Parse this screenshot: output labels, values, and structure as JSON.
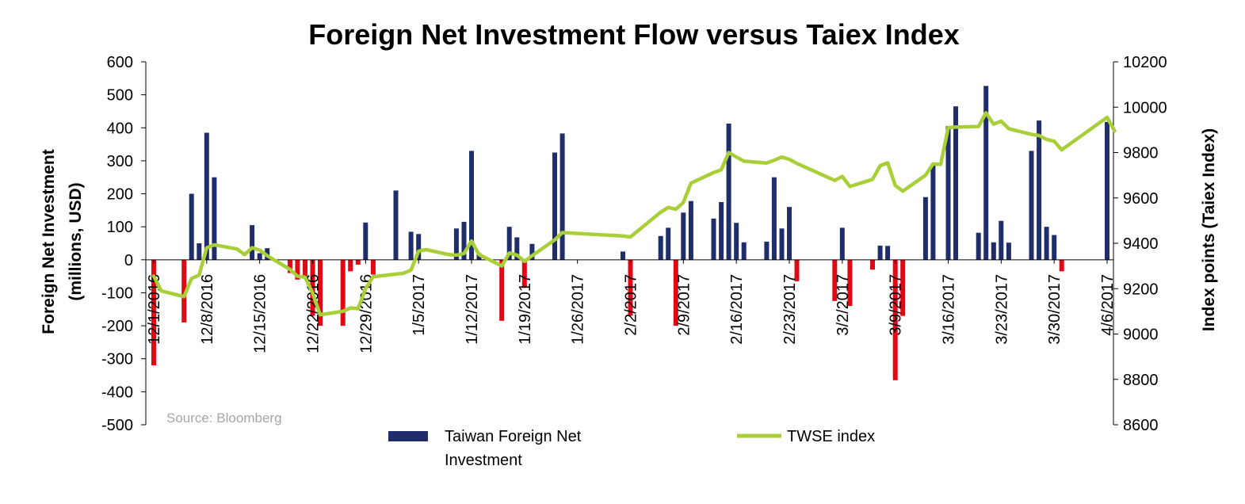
{
  "chart_data": {
    "type": "bar",
    "title": "Foreign Net Investment Flow versus Taiex Index",
    "y_left_label_lines": [
      "Foreign Net Investment",
      "(millions, USD)"
    ],
    "y_right_label": "Index points (Taiex Index)",
    "y_left_ticks": [
      "600",
      "500",
      "400",
      "300",
      "200",
      "100",
      "0",
      "-100",
      "-200",
      "-300",
      "-400",
      "-500"
    ],
    "y_right_ticks": [
      "10200",
      "10000",
      "9800",
      "9600",
      "9400",
      "9200",
      "9000",
      "8800",
      "8600"
    ],
    "ylim_left": [
      -500,
      600
    ],
    "ylim_right": [
      8600,
      10200
    ],
    "x_tick_labels": [
      "12/1/2016",
      "12/8/2016",
      "12/15/2016",
      "12/22/2016",
      "12/29/2016",
      "1/5/2017",
      "1/12/2017",
      "1/19/2017",
      "1/26/2017",
      "2/2/2017",
      "2/9/2017",
      "2/16/2017",
      "2/23/2017",
      "3/2/2017",
      "3/9/2017",
      "3/16/2017",
      "3/23/2017",
      "3/30/2017",
      "4/6/2017"
    ],
    "x_range": [
      "2016-12-01",
      "2017-04-06"
    ],
    "positive_color": "#1f2d6b",
    "negative_color": "#e30613",
    "line_color": "#a8cf38",
    "source": "Source: Bloomberg",
    "series": [
      {
        "name": "Taiwan Foreign Net Investment",
        "type": "bar",
        "axis": "left",
        "data": [
          [
            "2016-12-01",
            -320
          ],
          [
            "2016-12-05",
            -190
          ],
          [
            "2016-12-06",
            200
          ],
          [
            "2016-12-07",
            50
          ],
          [
            "2016-12-08",
            385
          ],
          [
            "2016-12-09",
            250
          ],
          [
            "2016-12-12",
            0
          ],
          [
            "2016-12-13",
            0
          ],
          [
            "2016-12-14",
            105
          ],
          [
            "2016-12-15",
            20
          ],
          [
            "2016-12-16",
            35
          ],
          [
            "2016-12-19",
            -40
          ],
          [
            "2016-12-20",
            -60
          ],
          [
            "2016-12-21",
            -55
          ],
          [
            "2016-12-22",
            -170
          ],
          [
            "2016-12-23",
            -200
          ],
          [
            "2016-12-26",
            -200
          ],
          [
            "2016-12-27",
            -35
          ],
          [
            "2016-12-28",
            -15
          ],
          [
            "2016-12-29",
            113
          ],
          [
            "2016-12-30",
            -45
          ],
          [
            "2017-01-02",
            210
          ],
          [
            "2017-01-03",
            0
          ],
          [
            "2017-01-04",
            85
          ],
          [
            "2017-01-05",
            78
          ],
          [
            "2017-01-06",
            0
          ],
          [
            "2017-01-09",
            0
          ],
          [
            "2017-01-10",
            95
          ],
          [
            "2017-01-11",
            115
          ],
          [
            "2017-01-12",
            330
          ],
          [
            "2017-01-13",
            20
          ],
          [
            "2017-01-16",
            -185
          ],
          [
            "2017-01-17",
            100
          ],
          [
            "2017-01-18",
            68
          ],
          [
            "2017-01-19",
            -85
          ],
          [
            "2017-01-20",
            48
          ],
          [
            "2017-01-23",
            325
          ],
          [
            "2017-01-24",
            383
          ],
          [
            "2017-02-01",
            25
          ],
          [
            "2017-02-02",
            -170
          ],
          [
            "2017-02-06",
            72
          ],
          [
            "2017-02-07",
            97
          ],
          [
            "2017-02-08",
            -200
          ],
          [
            "2017-02-09",
            143
          ],
          [
            "2017-02-10",
            178
          ],
          [
            "2017-02-13",
            125
          ],
          [
            "2017-02-14",
            175
          ],
          [
            "2017-02-15",
            413
          ],
          [
            "2017-02-16",
            112
          ],
          [
            "2017-02-17",
            53
          ],
          [
            "2017-02-20",
            55
          ],
          [
            "2017-02-21",
            250
          ],
          [
            "2017-02-22",
            95
          ],
          [
            "2017-02-23",
            160
          ],
          [
            "2017-02-24",
            -65
          ],
          [
            "2017-03-01",
            -125
          ],
          [
            "2017-03-02",
            97
          ],
          [
            "2017-03-03",
            -140
          ],
          [
            "2017-03-06",
            -30
          ],
          [
            "2017-03-07",
            43
          ],
          [
            "2017-03-08",
            42
          ],
          [
            "2017-03-09",
            -365
          ],
          [
            "2017-03-10",
            -170
          ],
          [
            "2017-03-13",
            190
          ],
          [
            "2017-03-14",
            290
          ],
          [
            "2017-03-15",
            0
          ],
          [
            "2017-03-16",
            405
          ],
          [
            "2017-03-17",
            465
          ],
          [
            "2017-03-20",
            82
          ],
          [
            "2017-03-21",
            527
          ],
          [
            "2017-03-22",
            53
          ],
          [
            "2017-03-23",
            118
          ],
          [
            "2017-03-24",
            52
          ],
          [
            "2017-03-27",
            330
          ],
          [
            "2017-03-28",
            422
          ],
          [
            "2017-03-29",
            100
          ],
          [
            "2017-03-30",
            75
          ],
          [
            "2017-03-31",
            -35
          ],
          [
            "2017-04-06",
            418
          ]
        ]
      },
      {
        "name": "TWSE index",
        "type": "line",
        "axis": "right",
        "data": [
          [
            "2016-12-01",
            9255
          ],
          [
            "2016-12-02",
            9190
          ],
          [
            "2016-12-05",
            9165
          ],
          [
            "2016-12-06",
            9245
          ],
          [
            "2016-12-07",
            9260
          ],
          [
            "2016-12-08",
            9380
          ],
          [
            "2016-12-09",
            9393
          ],
          [
            "2016-12-12",
            9375
          ],
          [
            "2016-12-13",
            9350
          ],
          [
            "2016-12-14",
            9380
          ],
          [
            "2016-12-15",
            9370
          ],
          [
            "2016-12-16",
            9345
          ],
          [
            "2016-12-19",
            9285
          ],
          [
            "2016-12-20",
            9255
          ],
          [
            "2016-12-21",
            9250
          ],
          [
            "2016-12-22",
            9180
          ],
          [
            "2016-12-23",
            9085
          ],
          [
            "2016-12-26",
            9100
          ],
          [
            "2016-12-27",
            9115
          ],
          [
            "2016-12-28",
            9112
          ],
          [
            "2016-12-29",
            9200
          ],
          [
            "2016-12-30",
            9253
          ],
          [
            "2017-01-03",
            9268
          ],
          [
            "2017-01-04",
            9282
          ],
          [
            "2017-01-05",
            9365
          ],
          [
            "2017-01-06",
            9372
          ],
          [
            "2017-01-09",
            9350
          ],
          [
            "2017-01-10",
            9348
          ],
          [
            "2017-01-11",
            9355
          ],
          [
            "2017-01-12",
            9410
          ],
          [
            "2017-01-13",
            9350
          ],
          [
            "2017-01-16",
            9300
          ],
          [
            "2017-01-17",
            9357
          ],
          [
            "2017-01-18",
            9348
          ],
          [
            "2017-01-19",
            9320
          ],
          [
            "2017-01-20",
            9345
          ],
          [
            "2017-01-23",
            9415
          ],
          [
            "2017-01-24",
            9447
          ],
          [
            "2017-02-01",
            9432
          ],
          [
            "2017-02-02",
            9428
          ],
          [
            "2017-02-06",
            9537
          ],
          [
            "2017-02-07",
            9558
          ],
          [
            "2017-02-08",
            9550
          ],
          [
            "2017-02-09",
            9580
          ],
          [
            "2017-02-10",
            9665
          ],
          [
            "2017-02-13",
            9712
          ],
          [
            "2017-02-14",
            9724
          ],
          [
            "2017-02-15",
            9800
          ],
          [
            "2017-02-16",
            9780
          ],
          [
            "2017-02-17",
            9762
          ],
          [
            "2017-02-20",
            9754
          ],
          [
            "2017-02-21",
            9766
          ],
          [
            "2017-02-22",
            9780
          ],
          [
            "2017-02-23",
            9770
          ],
          [
            "2017-02-24",
            9752
          ],
          [
            "2017-03-01",
            9677
          ],
          [
            "2017-03-02",
            9695
          ],
          [
            "2017-03-03",
            9650
          ],
          [
            "2017-03-06",
            9682
          ],
          [
            "2017-03-07",
            9742
          ],
          [
            "2017-03-08",
            9755
          ],
          [
            "2017-03-09",
            9655
          ],
          [
            "2017-03-10",
            9630
          ],
          [
            "2017-03-13",
            9700
          ],
          [
            "2017-03-14",
            9750
          ],
          [
            "2017-03-15",
            9748
          ],
          [
            "2017-03-16",
            9910
          ],
          [
            "2017-03-17",
            9912
          ],
          [
            "2017-03-20",
            9915
          ],
          [
            "2017-03-21",
            9975
          ],
          [
            "2017-03-22",
            9925
          ],
          [
            "2017-03-23",
            9938
          ],
          [
            "2017-03-24",
            9905
          ],
          [
            "2017-03-27",
            9880
          ],
          [
            "2017-03-28",
            9875
          ],
          [
            "2017-03-29",
            9858
          ],
          [
            "2017-03-30",
            9850
          ],
          [
            "2017-03-31",
            9812
          ],
          [
            "2017-04-06",
            9955
          ],
          [
            "2017-04-07",
            9895
          ]
        ]
      }
    ],
    "legend": [
      {
        "label_lines": [
          "Taiwan Foreign Net",
          "Investment"
        ],
        "kind": "bar"
      },
      {
        "label_lines": [
          "TWSE index"
        ],
        "kind": "line"
      }
    ],
    "legend_position": "bottom-center",
    "grid": false
  }
}
